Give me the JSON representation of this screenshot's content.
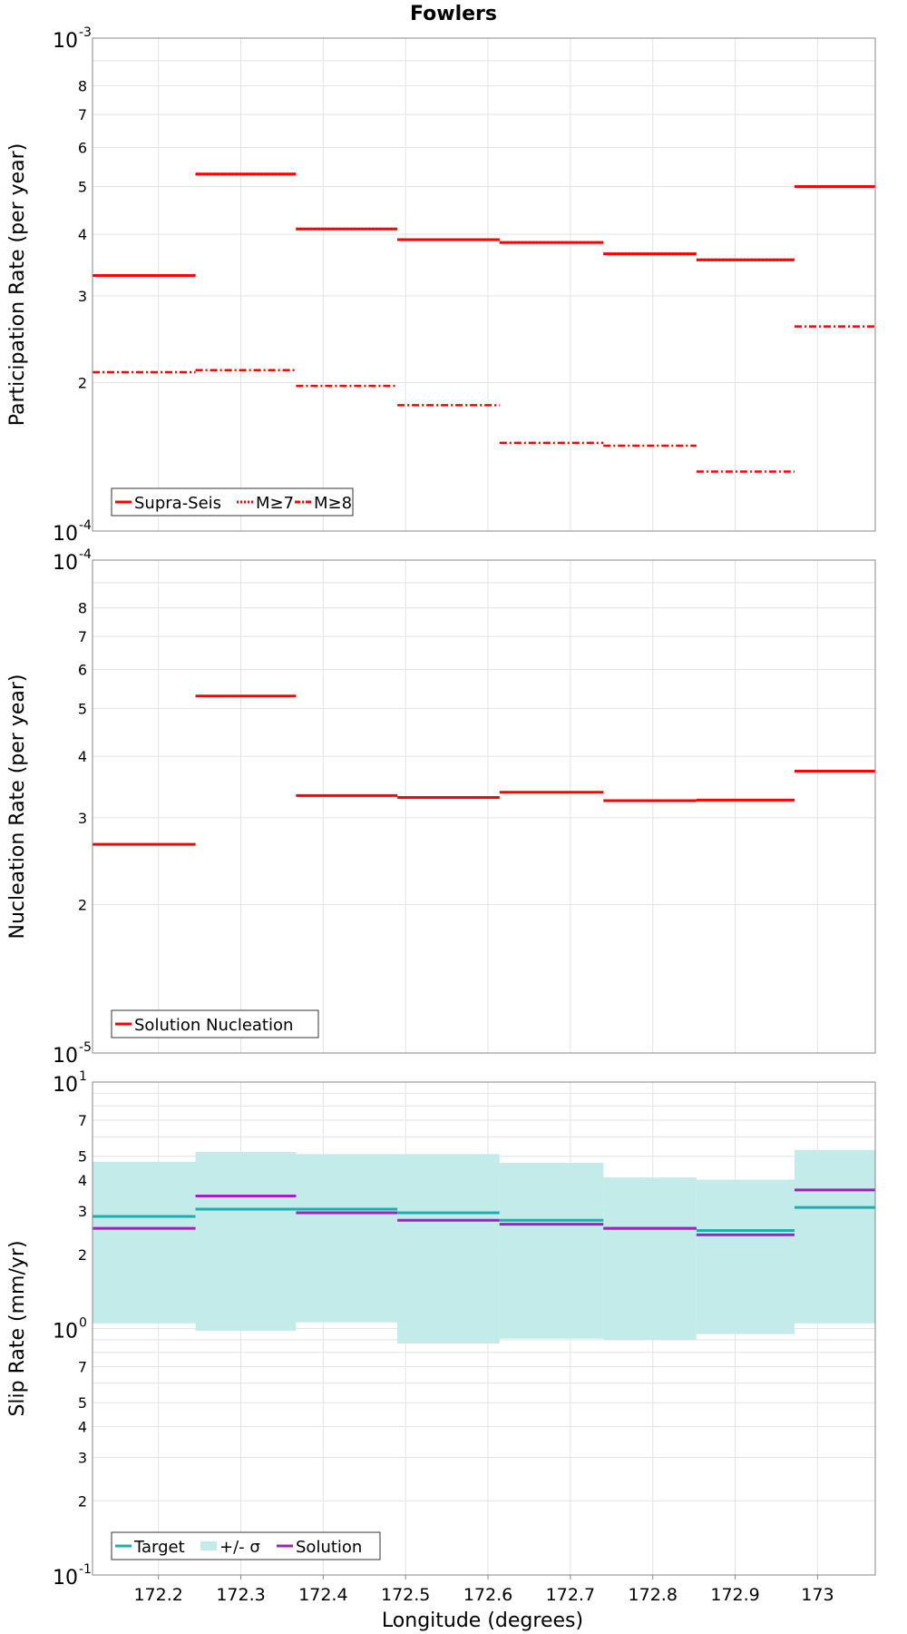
{
  "title": "Fowlers",
  "x_axis": {
    "label": "Longitude (degrees)",
    "range": [
      172.12,
      173.07
    ],
    "ticks": [
      172.2,
      172.3,
      172.4,
      172.5,
      172.6,
      172.7,
      172.8,
      172.9,
      173
    ],
    "tick_labels": [
      "172.2",
      "172.3",
      "172.4",
      "172.5",
      "172.6",
      "172.7",
      "172.8",
      "172.9",
      "173"
    ]
  },
  "chart_data": [
    {
      "type": "line",
      "scale": "log",
      "ylabel": "Participation Rate (per year)",
      "ylim": [
        0.0001,
        0.001
      ],
      "decade_labels": [
        {
          "base": "10",
          "exp": "-3"
        },
        {
          "base": "10",
          "exp": "-4"
        }
      ],
      "minor_tick_labels": [
        "8",
        "7",
        "6",
        "5",
        "4",
        "3",
        "2"
      ],
      "grid": true,
      "legend": {
        "position": "bottom-left",
        "entries": [
          "Supra-Seis",
          "M≥7",
          "M≥8"
        ]
      },
      "x_edges": [
        172.12,
        172.245,
        172.367,
        172.49,
        172.614,
        172.74,
        172.853,
        172.972,
        173.07
      ],
      "series": [
        {
          "name": "Supra-Seis",
          "color": "#ff0000",
          "style": "solid",
          "values": [
            0.00033,
            0.00053,
            0.00041,
            0.00039,
            0.000385,
            0.000365,
            0.000355,
            0.0005
          ]
        },
        {
          "name": "M≥7",
          "color": "#ff0000",
          "style": "dotted",
          "values": [
            0.00033,
            0.00053,
            0.00041,
            0.00039,
            0.000385,
            0.000365,
            0.000355,
            0.0005
          ]
        },
        {
          "name": "M≥8",
          "color": "#ff0000",
          "style": "dashdot",
          "values": [
            0.00021,
            0.000212,
            0.000197,
            0.00018,
            0.000151,
            0.000149,
            0.000132,
            0.00026
          ]
        }
      ]
    },
    {
      "type": "line",
      "scale": "log",
      "ylabel": "Nucleation Rate (per year)",
      "ylim": [
        1e-05,
        0.0001
      ],
      "decade_labels": [
        {
          "base": "10",
          "exp": "-4"
        },
        {
          "base": "10",
          "exp": "-5"
        }
      ],
      "minor_tick_labels": [
        "8",
        "7",
        "6",
        "5",
        "4",
        "3",
        "2"
      ],
      "grid": true,
      "legend": {
        "position": "bottom-left",
        "entries": [
          "Solution Nucleation"
        ]
      },
      "x_edges": [
        172.12,
        172.245,
        172.367,
        172.49,
        172.614,
        172.74,
        172.853,
        172.972,
        173.07
      ],
      "series": [
        {
          "name": "Solution Nucleation",
          "color": "#ff0000",
          "style": "solid",
          "values": [
            2.65e-05,
            5.3e-05,
            3.33e-05,
            3.3e-05,
            3.38e-05,
            3.25e-05,
            3.26e-05,
            3.73e-05
          ]
        }
      ]
    },
    {
      "type": "line",
      "scale": "log",
      "ylabel": "Slip Rate (mm/yr)",
      "ylim": [
        0.1,
        10
      ],
      "decade_labels": [
        {
          "base": "10",
          "exp": "1"
        },
        {
          "base": "10",
          "exp": "0"
        },
        {
          "base": "10",
          "exp": "-1"
        }
      ],
      "minor_tick_labels": [
        "7",
        "5",
        "4",
        "3",
        "2",
        "7",
        "5",
        "4",
        "3",
        "2"
      ],
      "grid": true,
      "legend": {
        "position": "bottom-left",
        "entries": [
          "Target",
          "+/- σ",
          "Solution"
        ]
      },
      "x_edges": [
        172.12,
        172.245,
        172.367,
        172.49,
        172.614,
        172.74,
        172.853,
        172.972,
        173.07
      ],
      "band": {
        "name": "+/- σ",
        "color": "#c2ebe9",
        "upper": [
          4.75,
          5.2,
          5.1,
          5.1,
          4.7,
          4.1,
          4.0,
          5.3
        ],
        "lower": [
          1.05,
          0.98,
          1.06,
          0.87,
          0.91,
          0.9,
          0.95,
          1.05
        ]
      },
      "series": [
        {
          "name": "Target",
          "color": "#1ab0b0",
          "style": "solid",
          "values": [
            2.85,
            3.05,
            3.05,
            2.95,
            2.75,
            2.55,
            2.5,
            3.1
          ]
        },
        {
          "name": "Solution",
          "color": "#a020c0",
          "style": "solid",
          "values": [
            2.55,
            3.45,
            2.95,
            2.75,
            2.65,
            2.55,
            2.4,
            3.65
          ]
        }
      ]
    }
  ]
}
